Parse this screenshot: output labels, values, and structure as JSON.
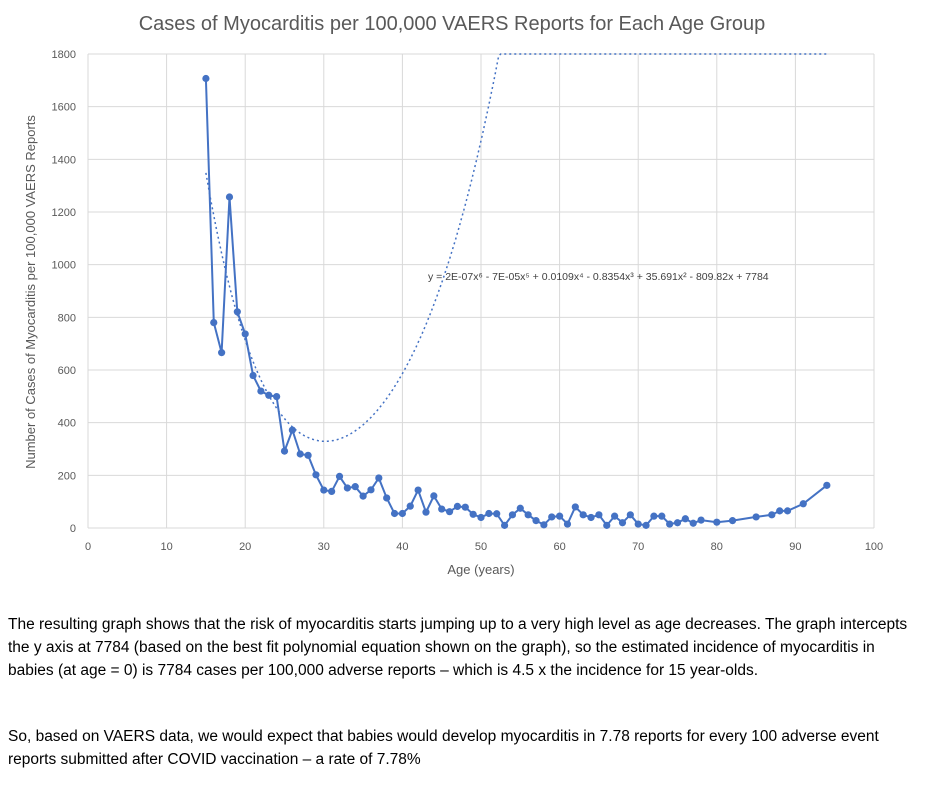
{
  "chart_data": {
    "type": "line",
    "title": "Cases of Myocarditis per 100,000 VAERS Reports for Each Age Group",
    "xlabel": "Age (years)",
    "ylabel": "Number of Cases of Myocarditis per 100,000 VAERS Reports",
    "xlim": [
      0,
      100
    ],
    "ylim": [
      0,
      1800
    ],
    "x_ticks": [
      0,
      10,
      20,
      30,
      40,
      50,
      60,
      70,
      80,
      90,
      100
    ],
    "y_ticks": [
      0,
      200,
      400,
      600,
      800,
      1000,
      1200,
      1400,
      1600,
      1800
    ],
    "grid": true,
    "series_color": "#4472c4",
    "series": [
      {
        "x": [
          15,
          16,
          17,
          18,
          19,
          20,
          21,
          22,
          23,
          24,
          25,
          26,
          27,
          28,
          29,
          30,
          31,
          32,
          33,
          34,
          35,
          36,
          37,
          38,
          39,
          40,
          41,
          42,
          43,
          44,
          45,
          46,
          47,
          48,
          49,
          50,
          51,
          52,
          53,
          54,
          55,
          56,
          57,
          58,
          59,
          60,
          61,
          62,
          63,
          64,
          65,
          66,
          67,
          68,
          69,
          70,
          71,
          72,
          73,
          74,
          75,
          76,
          77,
          78,
          80,
          82,
          85,
          87,
          88,
          89,
          91,
          94
        ],
        "values": [
          1707,
          780,
          666,
          1257,
          821,
          737,
          579,
          520,
          504,
          499,
          292,
          372,
          281,
          276,
          202,
          144,
          139,
          196,
          152,
          157,
          121,
          145,
          190,
          114,
          55,
          55,
          83,
          144,
          60,
          122,
          72,
          62,
          82,
          79,
          52,
          40,
          55,
          54,
          10,
          50,
          75,
          50,
          28,
          12,
          42,
          45,
          15,
          80,
          50,
          40,
          50,
          10,
          45,
          20,
          50,
          15,
          10,
          45,
          45,
          15,
          20,
          35,
          18,
          30,
          22,
          28,
          42,
          50,
          65,
          65,
          92,
          162
        ]
      }
    ],
    "trendline": {
      "type": "polynomial",
      "order": 6,
      "equation": "y = 2E-07x⁶ - 7E-05x⁵ + 0.0109x⁴ - 0.8354x³ + 35.691x² - 809.82x + 7784",
      "x_range": [
        15,
        94
      ]
    }
  },
  "text": {
    "paragraph1": "The resulting graph shows that the risk of myocarditis starts jumping up to a very high level as age decreases. The graph intercepts the y axis at 7784 (based on the best fit polynomial equation shown on the graph), so the estimated incidence of myocarditis in babies (at age = 0) is 7784 cases per 100,000 adverse reports – which is 4.5 x the incidence for 15 year-olds.",
    "paragraph2": "So, based on VAERS data, we would expect that babies would develop myocarditis in 7.78 reports  for every 100 adverse event reports submitted after COVID vaccination – a rate of 7.78%"
  }
}
